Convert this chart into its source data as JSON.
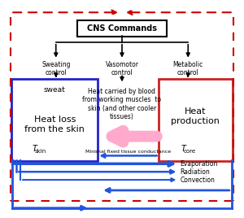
{
  "bg_color": "#ffffff",
  "red_dash": "#cc0000",
  "blue": "#2255dd",
  "pink": "#ffaacc",
  "black": "#000000",
  "blue_box_edge": "#2222cc",
  "red_box_edge": "#cc2222",
  "cns_label": "CNS Commands",
  "sweating_text": "Sweating\ncontrol",
  "vasomotor_text": "Vasomotor\ncontrol",
  "metabolic_text": "Metabolic\ncontrol",
  "middle_text": "Heat carried by blood\nfrom working muscles  to\nskin (and other cooler\ntissues)",
  "sweat_text": "sweat",
  "heat_loss_text": "Heat loss\nfrom the skin",
  "tskin_T": "T",
  "tskin_sub": "skin",
  "heat_prod_text": "Heat\nproduction",
  "tcore_T": "T",
  "tcore_sub": "core",
  "conductance_text": "Minimal fixed tissue conductance",
  "evap_text": "Evaporation",
  "rad_text": "Radiation",
  "conv_text": "Convection",
  "figw": 3.0,
  "figh": 2.68,
  "dpi": 100
}
